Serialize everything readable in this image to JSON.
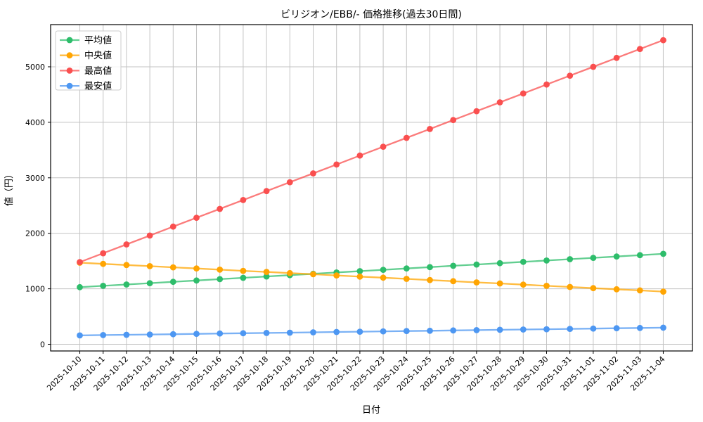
{
  "chart_data": {
    "type": "line",
    "title": "ビリジオン/EBB/- 価格推移(過去30日間)",
    "xlabel": "日付",
    "ylabel": "値（円）",
    "grid": true,
    "legend_position": "upper left",
    "ylim": [
      -120,
      5760
    ],
    "yticks": [
      0,
      1000,
      2000,
      3000,
      4000,
      5000
    ],
    "categories": [
      "2025-10-10",
      "2025-10-11",
      "2025-10-12",
      "2025-10-13",
      "2025-10-14",
      "2025-10-15",
      "2025-10-16",
      "2025-10-17",
      "2025-10-18",
      "2025-10-19",
      "2025-10-20",
      "2025-10-21",
      "2025-10-22",
      "2025-10-23",
      "2025-10-24",
      "2025-10-25",
      "2025-10-26",
      "2025-10-27",
      "2025-10-28",
      "2025-10-29",
      "2025-10-30",
      "2025-10-31",
      "2025-11-01",
      "2025-11-02",
      "2025-11-03",
      "2025-11-04"
    ],
    "series": [
      {
        "key": "mean",
        "name": "平均値",
        "color": "#2ebd6b",
        "values": [
          1030,
          1054,
          1078,
          1102,
          1126,
          1150,
          1174,
          1198,
          1222,
          1246,
          1270,
          1294,
          1318,
          1342,
          1366,
          1390,
          1414,
          1438,
          1462,
          1486,
          1510,
          1534,
          1558,
          1582,
          1606,
          1630
        ]
      },
      {
        "key": "median",
        "name": "中央値",
        "color": "#ffa502",
        "values": [
          1470,
          1449,
          1428,
          1408,
          1387,
          1366,
          1345,
          1324,
          1304,
          1283,
          1262,
          1241,
          1220,
          1200,
          1179,
          1158,
          1137,
          1116,
          1096,
          1075,
          1054,
          1033,
          1012,
          992,
          971,
          950
        ]
      },
      {
        "key": "max",
        "name": "最高値",
        "color": "#fa4f4f",
        "values": [
          1480,
          1640,
          1800,
          1960,
          2120,
          2280,
          2440,
          2600,
          2760,
          2920,
          3080,
          3240,
          3400,
          3560,
          3720,
          3880,
          4040,
          4200,
          4360,
          4520,
          4680,
          4840,
          5000,
          5160,
          5320,
          5480
        ]
      },
      {
        "key": "min",
        "name": "最安値",
        "color": "#4d97f2",
        "values": [
          160,
          166,
          171,
          177,
          182,
          188,
          194,
          199,
          205,
          210,
          216,
          222,
          227,
          233,
          238,
          244,
          250,
          255,
          261,
          266,
          272,
          278,
          283,
          289,
          294,
          300
        ]
      }
    ]
  }
}
